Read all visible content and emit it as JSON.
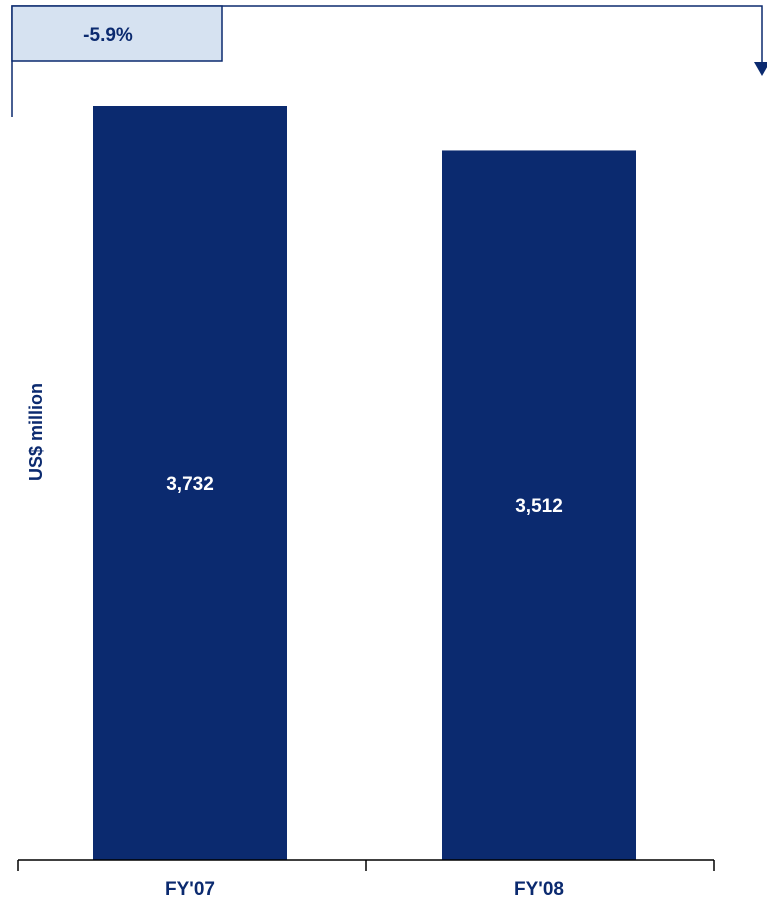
{
  "chart_data": {
    "type": "bar",
    "categories": [
      "FY'07",
      "FY'08"
    ],
    "values": [
      3732,
      3512
    ],
    "value_labels": [
      "3,732",
      "3,512"
    ],
    "title": "",
    "xlabel": "",
    "ylabel": "US$ million",
    "ylim": [
      0,
      3732
    ],
    "grid": false,
    "change_annotation": "-5.9%"
  },
  "colors": {
    "bar": "#0b2a6f",
    "text": "#0b2a6f",
    "change_box_fill": "#d6e2f1",
    "axis": "#000000"
  }
}
